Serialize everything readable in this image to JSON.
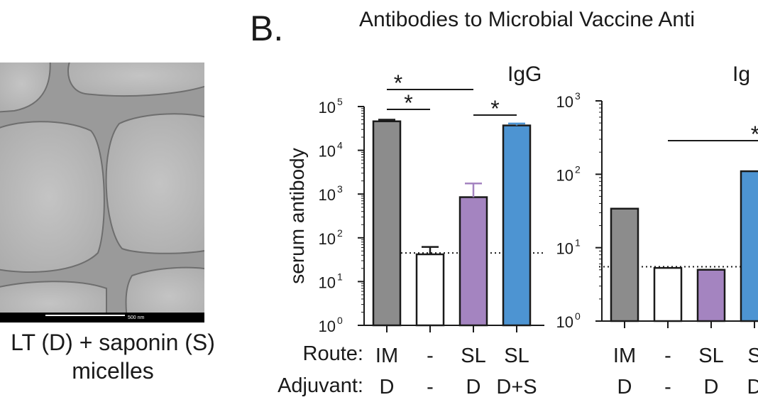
{
  "panel_b": {
    "letter": "B.",
    "title": "Antibodies to Microbial Vaccine Anti"
  },
  "micrograph": {
    "scale_bar_label": "500 nm",
    "caption_line1": "LT (D) + saponin (S)",
    "caption_line2": "micelles"
  },
  "rows": {
    "route_label": "Route:",
    "adjuvant_label": "Adjuvant:"
  },
  "chart_data": [
    {
      "type": "bar",
      "title": "IgG",
      "ylabel": "serum antibody",
      "yscale": "log",
      "ylim": [
        1,
        100000
      ],
      "yticks": [
        {
          "value": 1,
          "label": "10",
          "exp": "0"
        },
        {
          "value": 10,
          "label": "10",
          "exp": "1"
        },
        {
          "value": 100,
          "label": "10",
          "exp": "2"
        },
        {
          "value": 1000,
          "label": "10",
          "exp": "3"
        },
        {
          "value": 10000,
          "label": "10",
          "exp": "4"
        },
        {
          "value": 100000,
          "label": "10",
          "exp": "5"
        }
      ],
      "route": [
        "IM",
        "-",
        "SL",
        "SL"
      ],
      "adjuvant": [
        "D",
        "-",
        "D",
        "D+S"
      ],
      "values": [
        46000,
        42,
        850,
        37000
      ],
      "error_upper": [
        50000,
        62,
        1750,
        41000
      ],
      "colors": [
        "#8c8c8c",
        "#ffffff",
        "#a484c0",
        "#4d94d2"
      ],
      "error_colors": [
        "#1a1a1a",
        "#1a1a1a",
        "#a484c0",
        "#4d94d2"
      ],
      "detection_limit": 45,
      "significance": [
        {
          "from": 0,
          "to": 2,
          "label": "*"
        },
        {
          "from": 0,
          "to": 1,
          "label": "*"
        },
        {
          "from": 2,
          "to": 3,
          "label": "*"
        }
      ]
    },
    {
      "type": "bar",
      "title": "Ig",
      "yscale": "log",
      "ylim": [
        1,
        1000
      ],
      "yticks": [
        {
          "value": 1,
          "label": "10",
          "exp": "0"
        },
        {
          "value": 10,
          "label": "10",
          "exp": "1"
        },
        {
          "value": 100,
          "label": "10",
          "exp": "2"
        },
        {
          "value": 1000,
          "label": "10",
          "exp": "3"
        }
      ],
      "route": [
        "IM",
        "-",
        "SL",
        "S"
      ],
      "adjuvant": [
        "D",
        "-",
        "D",
        "D"
      ],
      "values": [
        34,
        5.3,
        5.0,
        110
      ],
      "colors": [
        "#8c8c8c",
        "#ffffff",
        "#a484c0",
        "#4d94d2"
      ],
      "detection_limit": 5.5,
      "significance": [
        {
          "from": 1,
          "to": 3,
          "label": "*"
        }
      ]
    }
  ],
  "colors": {
    "axis": "#1a1a1a",
    "grid_background": "#b9b9b9",
    "membrane": "#6e6e6e"
  }
}
